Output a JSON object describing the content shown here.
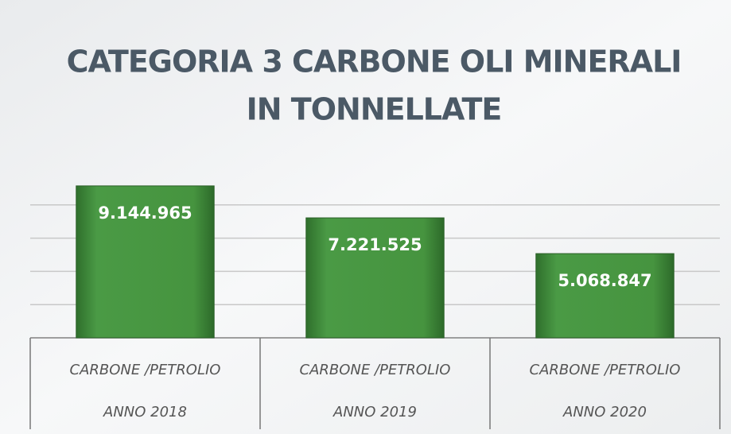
{
  "chart_data": {
    "type": "bar",
    "title": [
      "CATEGORIA 3 CARBONE OLI MINERALI",
      "IN TONNELLATE"
    ],
    "categories": [
      [
        "CARBONE /PETROLIO",
        "ANNO 2018"
      ],
      [
        "CARBONE /PETROLIO",
        "ANNO 2019"
      ],
      [
        "CARBONE /PETROLIO",
        "ANNO 2020"
      ]
    ],
    "values": [
      9144965,
      7221525,
      5068847
    ],
    "value_labels": [
      "9.144.965",
      "7.221.525",
      "5.068.847"
    ],
    "color": "#3f8c3b",
    "ylim": [
      0,
      10000000
    ],
    "yticks": [
      0,
      2000000,
      4000000,
      6000000,
      8000000
    ],
    "grid": true
  }
}
